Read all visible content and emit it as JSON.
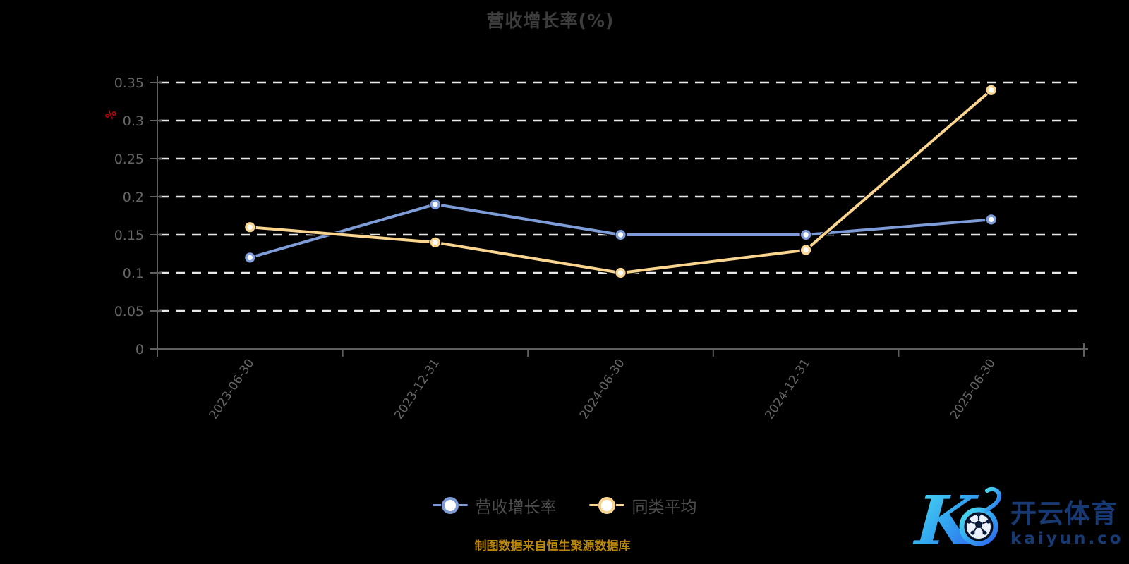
{
  "title": {
    "text": "营收增长率(%)",
    "color": "#3c3c3c"
  },
  "y_axis": {
    "name": "%",
    "name_color": "#c40000",
    "label_color": "#666666",
    "axis_color": "#606060"
  },
  "x_axis": {
    "label_color": "#666666"
  },
  "grid": {
    "line_color": "#e8e8e8",
    "style": "dashed"
  },
  "chart_data": {
    "type": "line",
    "categories": [
      "2023-06-30",
      "2023-12-31",
      "2024-06-30",
      "2024-12-31",
      "2025-06-30"
    ],
    "series": [
      {
        "name": "营收增长率",
        "color": "#7e9cd8",
        "values": [
          0.12,
          0.19,
          0.15,
          0.15,
          0.17
        ]
      },
      {
        "name": "同类平均",
        "color": "#f9d58f",
        "values": [
          0.16,
          0.14,
          0.1,
          0.13,
          0.34
        ]
      }
    ],
    "title": "营收增长率(%)",
    "xlabel": "",
    "ylabel": "%",
    "ylim": [
      0,
      0.35
    ],
    "y_ticks": [
      0,
      0.05,
      0.1,
      0.15,
      0.2,
      0.25,
      0.3,
      0.35
    ],
    "grid": "horizontal-dashed-white",
    "legend_position": "bottom",
    "marker": "circle-white-fill"
  },
  "legend": {
    "items": [
      {
        "label": "营收增长率",
        "color": "#7e9cd8"
      },
      {
        "label": "同类平均",
        "color": "#f9d58f"
      }
    ]
  },
  "footer": {
    "text": "制图数据来自恒生聚源数据库",
    "color": "#b8860b"
  },
  "logo": {
    "brand": "开云体育",
    "domain": "kaiyun.com",
    "text_color": "#183a74",
    "gradient_start": "#4ce0ee",
    "gradient_end": "#2d62ee"
  }
}
